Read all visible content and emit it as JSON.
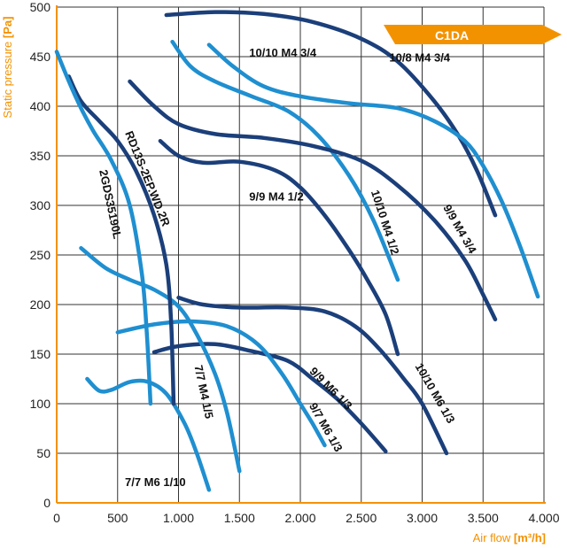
{
  "chart_data": {
    "type": "line",
    "badge": "C1DA",
    "xlabel": "Air flow",
    "xlabel_unit": "[m³/h]",
    "ylabel": "Static pressure",
    "ylabel_unit": "[Pa]",
    "xlim": [
      0,
      4000
    ],
    "ylim": [
      0,
      500
    ],
    "grid": true,
    "x_ticks": [
      {
        "value": 0,
        "label": "0"
      },
      {
        "value": 500,
        "label": "500"
      },
      {
        "value": 1000,
        "label": "1.000"
      },
      {
        "value": 1500,
        "label": "1.500"
      },
      {
        "value": 2000,
        "label": "2.000"
      },
      {
        "value": 2500,
        "label": "2.500"
      },
      {
        "value": 3000,
        "label": "3.000"
      },
      {
        "value": 3500,
        "label": "3.500"
      },
      {
        "value": 4000,
        "label": "4.000"
      }
    ],
    "y_ticks": [
      {
        "value": 0,
        "label": "0"
      },
      {
        "value": 50,
        "label": "50"
      },
      {
        "value": 100,
        "label": "100"
      },
      {
        "value": 150,
        "label": "150"
      },
      {
        "value": 200,
        "label": "200"
      },
      {
        "value": 250,
        "label": "250"
      },
      {
        "value": 300,
        "label": "300"
      },
      {
        "value": 350,
        "label": "350"
      },
      {
        "value": 400,
        "label": "400"
      },
      {
        "value": 450,
        "label": "450"
      },
      {
        "value": 500,
        "label": "500"
      }
    ],
    "colors": {
      "dark": "#1b3f7a",
      "light": "#1f8fd0",
      "axis": "#f39200",
      "grid": "#333333"
    },
    "series": [
      {
        "name": "10/8 M4 3/4",
        "color": "dark",
        "label_at": [
          2730,
          445
        ],
        "label_angle": 0,
        "points": [
          [
            900,
            492
          ],
          [
            1300,
            495
          ],
          [
            1700,
            493
          ],
          [
            2100,
            485
          ],
          [
            2500,
            468
          ],
          [
            2800,
            445
          ],
          [
            3100,
            405
          ],
          [
            3300,
            370
          ],
          [
            3450,
            335
          ],
          [
            3600,
            290
          ]
        ]
      },
      {
        "name": "10/10 M4 3/4",
        "color": "light",
        "label_at": [
          1580,
          450
        ],
        "label_angle": 0,
        "points": [
          [
            1250,
            462
          ],
          [
            1450,
            440
          ],
          [
            1700,
            420
          ],
          [
            2000,
            410
          ],
          [
            2400,
            403
          ],
          [
            2800,
            398
          ],
          [
            3100,
            385
          ],
          [
            3350,
            365
          ],
          [
            3500,
            340
          ],
          [
            3650,
            305
          ],
          [
            3800,
            260
          ],
          [
            3950,
            208
          ]
        ]
      },
      {
        "name": "10/10 M4 1/2",
        "color": "light",
        "label_at": [
          2580,
          314
        ],
        "label_angle": 72,
        "points": [
          [
            950,
            465
          ],
          [
            1100,
            440
          ],
          [
            1300,
            425
          ],
          [
            1600,
            410
          ],
          [
            1900,
            395
          ],
          [
            2150,
            370
          ],
          [
            2400,
            330
          ],
          [
            2600,
            285
          ],
          [
            2800,
            225
          ]
        ]
      },
      {
        "name": "9/9 M4 3/4",
        "color": "dark",
        "label_at": [
          3170,
          298
        ],
        "label_angle": 60,
        "points": [
          [
            600,
            425
          ],
          [
            800,
            400
          ],
          [
            1000,
            382
          ],
          [
            1300,
            372
          ],
          [
            1700,
            368
          ],
          [
            2100,
            360
          ],
          [
            2500,
            345
          ],
          [
            2800,
            320
          ],
          [
            3100,
            285
          ],
          [
            3350,
            245
          ],
          [
            3500,
            210
          ],
          [
            3600,
            185
          ]
        ]
      },
      {
        "name": "9/9 M4 1/2",
        "color": "dark",
        "label_at": [
          1580,
          305
        ],
        "label_angle": 0,
        "points": [
          [
            850,
            365
          ],
          [
            1000,
            350
          ],
          [
            1200,
            343
          ],
          [
            1500,
            344
          ],
          [
            1800,
            335
          ],
          [
            2000,
            318
          ],
          [
            2200,
            290
          ],
          [
            2400,
            255
          ],
          [
            2550,
            225
          ],
          [
            2700,
            190
          ],
          [
            2800,
            150
          ]
        ]
      },
      {
        "name": "10/10 M6 1/3",
        "color": "dark",
        "label_at": [
          2940,
          138
        ],
        "label_angle": 60,
        "points": [
          [
            1000,
            207
          ],
          [
            1200,
            200
          ],
          [
            1500,
            197
          ],
          [
            1900,
            197
          ],
          [
            2200,
            193
          ],
          [
            2450,
            178
          ],
          [
            2650,
            155
          ],
          [
            2850,
            125
          ],
          [
            3000,
            100
          ],
          [
            3200,
            50
          ]
        ]
      },
      {
        "name": "9/9 M6 1/3",
        "color": "dark",
        "label_at": [
          2070,
          132
        ],
        "label_angle": 45,
        "points": [
          [
            800,
            152
          ],
          [
            1000,
            158
          ],
          [
            1300,
            160
          ],
          [
            1600,
            153
          ],
          [
            1900,
            143
          ],
          [
            2100,
            125
          ],
          [
            2300,
            105
          ],
          [
            2500,
            80
          ],
          [
            2700,
            52
          ]
        ]
      },
      {
        "name": "9/7 M6 1/3",
        "color": "light",
        "label_at": [
          2070,
          98
        ],
        "label_angle": 60,
        "points": [
          [
            500,
            172
          ],
          [
            800,
            180
          ],
          [
            1100,
            183
          ],
          [
            1400,
            178
          ],
          [
            1650,
            160
          ],
          [
            1850,
            130
          ],
          [
            2000,
            100
          ],
          [
            2100,
            80
          ],
          [
            2200,
            58
          ]
        ]
      },
      {
        "name": "7/7 M4 1/5",
        "color": "light",
        "label_at": [
          1130,
          138
        ],
        "label_angle": 78,
        "points": [
          [
            200,
            257
          ],
          [
            400,
            237
          ],
          [
            600,
            225
          ],
          [
            800,
            215
          ],
          [
            1000,
            198
          ],
          [
            1150,
            170
          ],
          [
            1300,
            130
          ],
          [
            1400,
            90
          ],
          [
            1500,
            32
          ]
        ]
      },
      {
        "name": "7/7 M6 1/10",
        "color": "light",
        "label_at": [
          560,
          17
        ],
        "label_angle": 0,
        "points": [
          [
            250,
            125
          ],
          [
            350,
            113
          ],
          [
            450,
            114
          ],
          [
            600,
            122
          ],
          [
            750,
            122
          ],
          [
            900,
            110
          ],
          [
            1050,
            80
          ],
          [
            1150,
            50
          ],
          [
            1250,
            13
          ]
        ]
      },
      {
        "name": "RD13S-2EP.WD.2R",
        "color": "dark",
        "label_at": [
          560,
          373
        ],
        "label_angle": 68,
        "points": [
          [
            100,
            430
          ],
          [
            200,
            405
          ],
          [
            350,
            385
          ],
          [
            500,
            365
          ],
          [
            650,
            335
          ],
          [
            800,
            290
          ],
          [
            900,
            240
          ],
          [
            940,
            180
          ],
          [
            960,
            100
          ]
        ]
      },
      {
        "name": "2GDS35190L",
        "color": "light",
        "label_at": [
          350,
          335
        ],
        "label_angle": 78,
        "points": [
          [
            0,
            455
          ],
          [
            100,
            425
          ],
          [
            200,
            398
          ],
          [
            300,
            375
          ],
          [
            450,
            345
          ],
          [
            600,
            300
          ],
          [
            700,
            230
          ],
          [
            740,
            170
          ],
          [
            770,
            100
          ]
        ]
      }
    ]
  }
}
